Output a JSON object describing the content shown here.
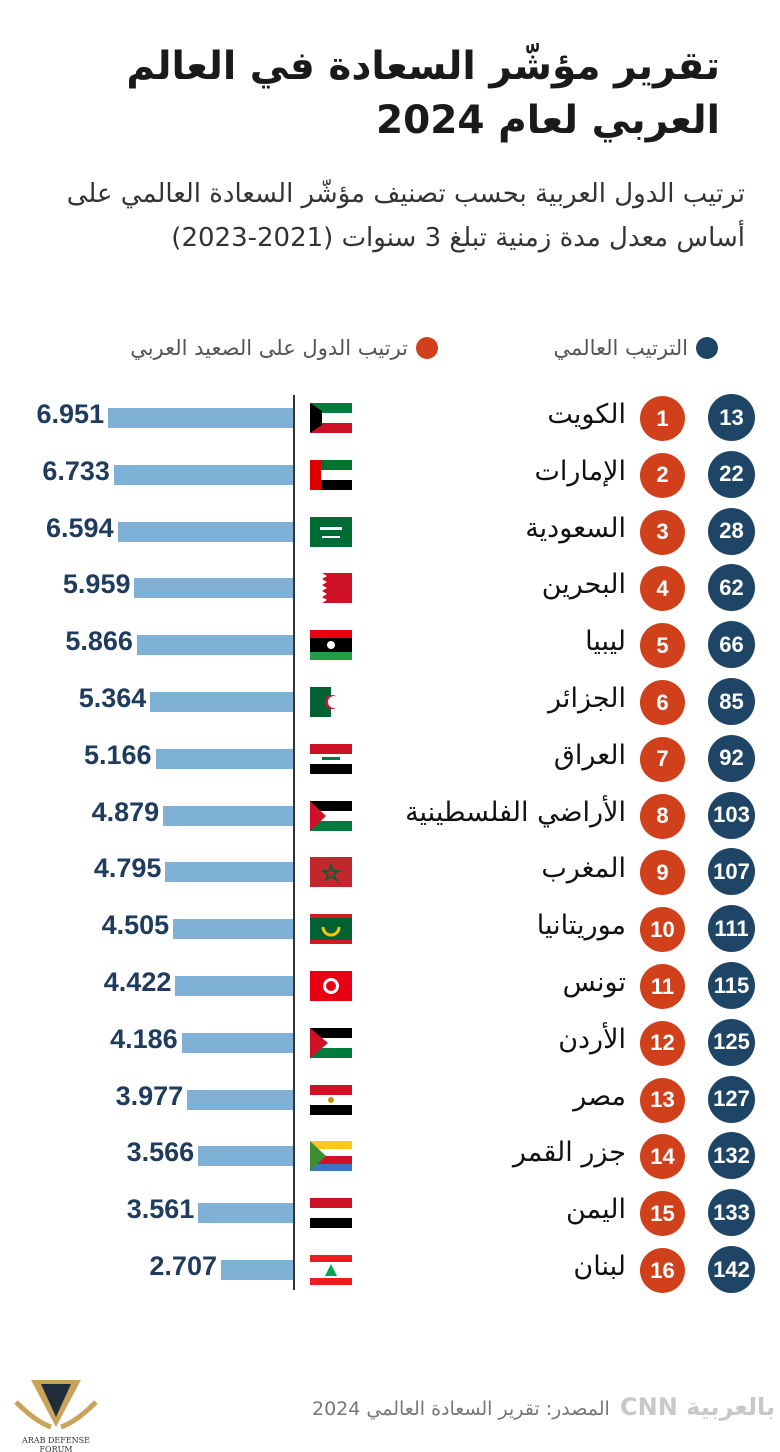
{
  "title": "تقرير مؤشّر السعادة في العالم العربي لعام 2024",
  "subtitle": "ترتيب الدول العربية بحسب تصنيف مؤشّر السعادة العالمي على أساس معدل مدة زمنية تبلغ 3 سنوات (2021-2023)",
  "legend": {
    "world": "الترتيب العالمي",
    "arab": "ترتيب الدول على الصعيد العربي",
    "world_color": "#1f4566",
    "arab_color": "#d0401b"
  },
  "source": "المصدر: تقرير السعادة العالمي 2024",
  "brand": "بالعربية CNN",
  "watermark": "ARAB DEFENSE FORUM المنتدى العربي للدفاع والتسليح",
  "chart_data": {
    "type": "bar",
    "orientation": "horizontal",
    "bar_color": "#7fb0d6",
    "categories": [
      "الكويت",
      "الإمارات",
      "السعودية",
      "البحرين",
      "ليبيا",
      "الجزائر",
      "العراق",
      "الأراضي الفلسطينية",
      "المغرب",
      "موريتانيا",
      "تونس",
      "الأردن",
      "مصر",
      "جزر القمر",
      "اليمن",
      "لبنان"
    ],
    "values": [
      6.951,
      6.733,
      6.594,
      5.959,
      5.866,
      5.364,
      5.166,
      4.879,
      4.795,
      4.505,
      4.422,
      4.186,
      3.977,
      3.566,
      3.561,
      2.707
    ],
    "value_labels": [
      "6.951",
      "6.733",
      "6.594",
      "5.959",
      "5.866",
      "5.364",
      "5.166",
      "4.879",
      "4.795",
      "4.505",
      "4.422",
      "4.186",
      "3.977",
      "3.566",
      "3.561",
      "2.707"
    ],
    "arab_rank": [
      "1",
      "2",
      "3",
      "4",
      "5",
      "6",
      "7",
      "8",
      "9",
      "10",
      "11",
      "12",
      "13",
      "14",
      "15",
      "16"
    ],
    "world_rank": [
      "13",
      "22",
      "28",
      "62",
      "66",
      "85",
      "92",
      "103",
      "107",
      "111",
      "115",
      "125",
      "127",
      "132",
      "133",
      "142"
    ],
    "flags": [
      "kuwait",
      "uae",
      "saudi",
      "bahrain",
      "libya",
      "algeria",
      "iraq",
      "palestine",
      "morocco",
      "mauritania",
      "tunisia",
      "jordan",
      "egypt",
      "comoros",
      "yemen",
      "lebanon"
    ]
  }
}
